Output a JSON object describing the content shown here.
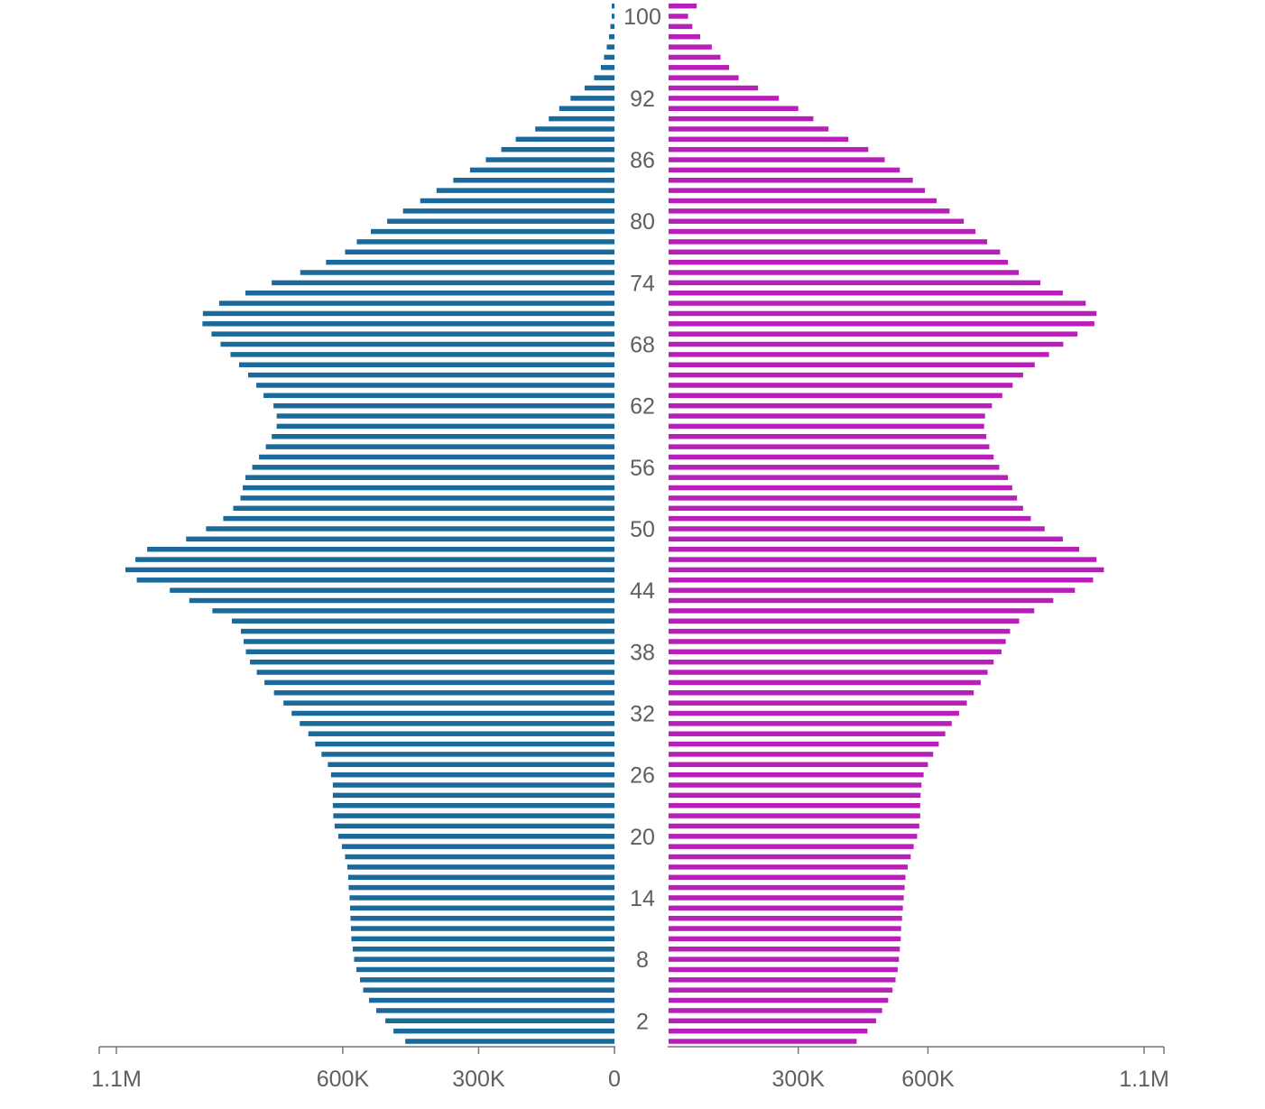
{
  "chart_data": {
    "type": "bar",
    "orientation": "horizontal",
    "variant": "population-pyramid",
    "title": "",
    "xlabel": "",
    "ylabel": "",
    "ages": [
      0,
      1,
      2,
      3,
      4,
      5,
      6,
      7,
      8,
      9,
      10,
      11,
      12,
      13,
      14,
      15,
      16,
      17,
      18,
      19,
      20,
      21,
      22,
      23,
      24,
      25,
      26,
      27,
      28,
      29,
      30,
      31,
      32,
      33,
      34,
      35,
      36,
      37,
      38,
      39,
      40,
      41,
      42,
      43,
      44,
      45,
      46,
      47,
      48,
      49,
      50,
      51,
      52,
      53,
      54,
      55,
      56,
      57,
      58,
      59,
      60,
      61,
      62,
      63,
      64,
      65,
      66,
      67,
      68,
      69,
      70,
      71,
      72,
      73,
      74,
      75,
      76,
      77,
      78,
      79,
      80,
      81,
      82,
      83,
      84,
      85,
      86,
      87,
      88,
      89,
      90,
      91,
      92,
      93,
      94,
      95,
      96,
      97,
      98,
      99,
      100,
      101
    ],
    "age_tick_labels": [
      "2",
      "8",
      "14",
      "20",
      "26",
      "32",
      "38",
      "44",
      "50",
      "56",
      "62",
      "68",
      "74",
      "80",
      "86",
      "92",
      "100"
    ],
    "age_tick_values": [
      2,
      8,
      14,
      20,
      26,
      32,
      38,
      44,
      50,
      56,
      62,
      68,
      74,
      80,
      86,
      92,
      100
    ],
    "series": [
      {
        "side": "left",
        "color": "#19699b",
        "values": [
          462000,
          488000,
          506000,
          526000,
          542000,
          555000,
          562000,
          570000,
          575000,
          578000,
          581000,
          582000,
          583000,
          584000,
          585000,
          587000,
          588000,
          590000,
          595000,
          602000,
          610000,
          618000,
          621000,
          622000,
          622000,
          622000,
          626000,
          633000,
          647000,
          661000,
          676000,
          695000,
          713000,
          731000,
          752000,
          773000,
          790000,
          805000,
          814000,
          819000,
          825000,
          845000,
          888000,
          939000,
          982000,
          1055000,
          1080000,
          1058000,
          1032000,
          946000,
          902000,
          864000,
          842000,
          826000,
          821000,
          815000,
          800000,
          785000,
          770000,
          757000,
          746000,
          746000,
          753000,
          775000,
          791000,
          809000,
          829000,
          848000,
          870000,
          890000,
          910000,
          909000,
          873000,
          815000,
          757000,
          694000,
          637000,
          595000,
          569000,
          538000,
          502000,
          467000,
          429000,
          393000,
          356000,
          319000,
          284000,
          250000,
          218000,
          175000,
          145000,
          122000,
          97000,
          66000,
          45000,
          30000,
          23000,
          17000,
          12000,
          9000,
          6000,
          6000
        ]
      },
      {
        "side": "right",
        "color": "#b81fb8",
        "values": [
          435000,
          460000,
          480000,
          494000,
          508000,
          518000,
          525000,
          530000,
          533000,
          535000,
          537000,
          538000,
          540000,
          542000,
          544000,
          546000,
          548000,
          553000,
          560000,
          567000,
          575000,
          580000,
          582000,
          582000,
          583000,
          585000,
          590000,
          600000,
          612000,
          625000,
          640000,
          655000,
          672000,
          690000,
          706000,
          722000,
          738000,
          752000,
          770000,
          780000,
          790000,
          811000,
          846000,
          890000,
          940000,
          982000,
          1007000,
          990000,
          950000,
          912000,
          870000,
          838000,
          820000,
          806000,
          795000,
          785000,
          765000,
          752000,
          742000,
          735000,
          730000,
          732000,
          748000,
          772000,
          796000,
          820000,
          847000,
          880000,
          913000,
          946000,
          985000,
          990000,
          965000,
          912000,
          860000,
          810000,
          785000,
          767000,
          737000,
          710000,
          683000,
          650000,
          620000,
          593000,
          565000,
          535000,
          500000,
          462000,
          416000,
          370000,
          335000,
          300000,
          255000,
          207000,
          162000,
          140000,
          120000,
          100000,
          73000,
          55000,
          45000,
          65000
        ]
      }
    ],
    "axes": {
      "left_ticks": [
        {
          "value": 0,
          "label": "0"
        },
        {
          "value": 300000,
          "label": "300K"
        },
        {
          "value": 600000,
          "label": "600K"
        },
        {
          "value": 1100000,
          "label": "1.1M"
        }
      ],
      "right_ticks": [
        {
          "value": 300000,
          "label": "300K"
        },
        {
          "value": 600000,
          "label": "600K"
        },
        {
          "value": 1100000,
          "label": "1.1M"
        }
      ]
    },
    "xlim": [
      0,
      1170000
    ],
    "grid": false,
    "legend": "none"
  }
}
